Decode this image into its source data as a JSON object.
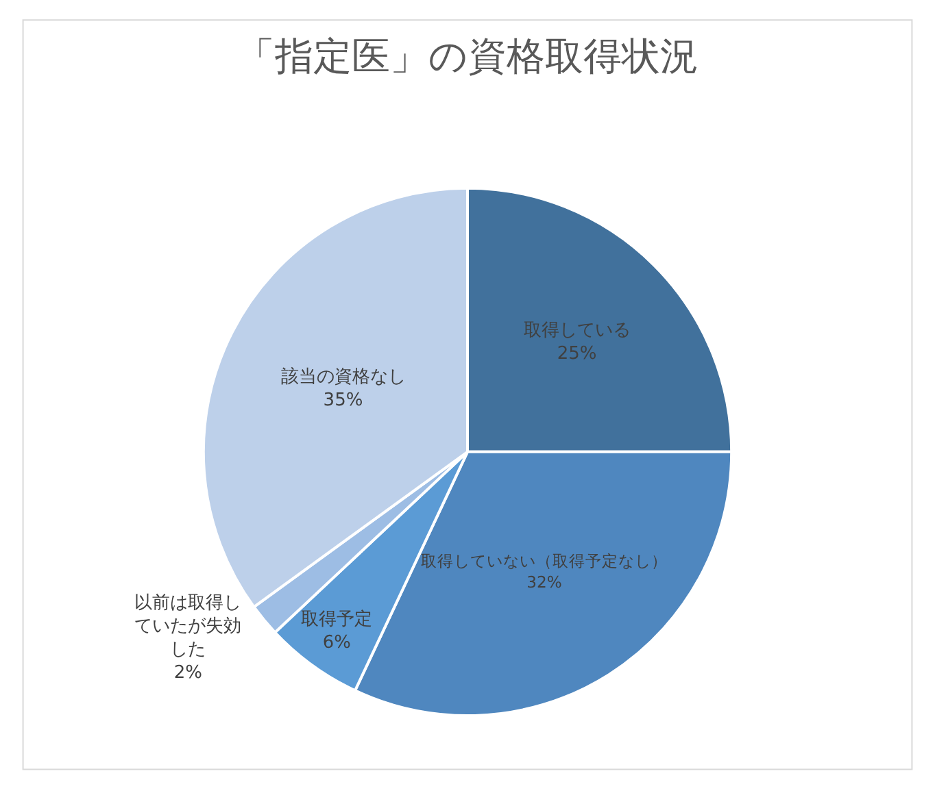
{
  "chart_data": {
    "type": "pie",
    "title": "「指定医」の資格取得状況",
    "categories": [
      "取得している",
      "取得していない（取得予定なし）",
      "取得予定",
      "以前は取得していたが失効した",
      "該当の資格なし"
    ],
    "values": [
      25,
      32,
      6,
      2,
      35
    ],
    "value_labels": [
      "25%",
      "32%",
      "6%",
      "2%",
      "35%"
    ],
    "colors": [
      "#41719c",
      "#4f87bf",
      "#5b9bd5",
      "#9dbde4",
      "#bdd0ea"
    ],
    "legend": false
  }
}
